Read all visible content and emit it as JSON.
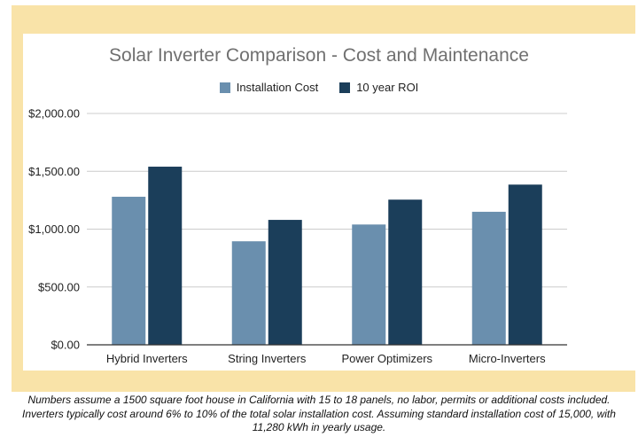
{
  "chart_data": {
    "type": "bar",
    "title": "Solar Inverter Comparison - Cost and Maintenance",
    "categories": [
      "Hybrid Inverters",
      "String Inverters",
      "Power Optimizers",
      "Micro-Inverters"
    ],
    "series": [
      {
        "name": "Installation Cost",
        "color": "#6a8fae",
        "values": [
          1280,
          895,
          1040,
          1150
        ]
      },
      {
        "name": "10 year ROI",
        "color": "#1b3e5a",
        "values": [
          1540,
          1080,
          1255,
          1385
        ]
      }
    ],
    "ylim": [
      0,
      2000
    ],
    "yticks": [
      0,
      500,
      1000,
      1500,
      2000
    ],
    "ytick_labels": [
      "$0.00",
      "$500.00",
      "$1,000.00",
      "$1,500.00",
      "$2,000.00"
    ],
    "grid": true,
    "legend_position": "top-center",
    "xlabel": "",
    "ylabel": ""
  },
  "footnote": {
    "line1": "Numbers assume a 1500 square foot house in California with 15 to 18 panels, no labor, permits or additional costs included.",
    "line2": "Inverters typically cost around 6% to 10% of the total solar installation cost. Assuming standard installation cost of 15,000, with",
    "line3": "11,280 kWh in yearly usage."
  },
  "colors": {
    "frame": "#f9e3a8",
    "grid": "#cccccc",
    "axis": "#333333"
  }
}
